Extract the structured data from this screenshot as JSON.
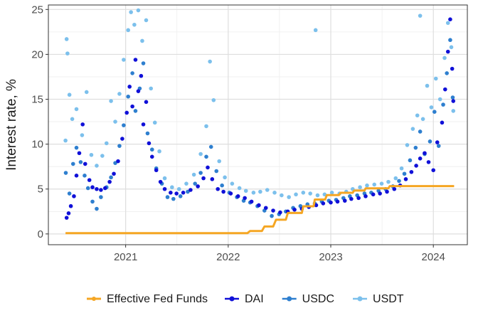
{
  "chart_data": {
    "type": "scatter",
    "title": "",
    "xlabel": "",
    "ylabel": "Interest rate, %",
    "xlim": [
      "2020-04-01",
      "2024-05-01"
    ],
    "ylim": [
      -1.2,
      25.5
    ],
    "x_ticks": [
      {
        "date": "2021-01-01",
        "label": "2021"
      },
      {
        "date": "2022-01-01",
        "label": "2022"
      },
      {
        "date": "2023-01-01",
        "label": "2023"
      },
      {
        "date": "2024-01-01",
        "label": "2024"
      }
    ],
    "y_ticks": [
      {
        "value": 0,
        "label": "0"
      },
      {
        "value": 5,
        "label": "5"
      },
      {
        "value": 10,
        "label": "10"
      },
      {
        "value": 15,
        "label": "15"
      },
      {
        "value": 20,
        "label": "20"
      },
      {
        "value": 25,
        "label": "25"
      }
    ],
    "grid": true,
    "legend_position": "bottom",
    "series": [
      {
        "name": "Effective Fed Funds",
        "kind": "line",
        "color": "#f5a623",
        "points": [
          [
            "2020-06-01",
            0.08
          ],
          [
            "2022-03-10",
            0.08
          ],
          [
            "2022-03-20",
            0.33
          ],
          [
            "2022-05-01",
            0.33
          ],
          [
            "2022-05-10",
            0.83
          ],
          [
            "2022-06-10",
            0.83
          ],
          [
            "2022-06-20",
            1.58
          ],
          [
            "2022-07-25",
            1.58
          ],
          [
            "2022-08-01",
            2.33
          ],
          [
            "2022-09-20",
            2.33
          ],
          [
            "2022-09-25",
            3.08
          ],
          [
            "2022-11-01",
            3.08
          ],
          [
            "2022-11-05",
            3.83
          ],
          [
            "2022-12-12",
            3.83
          ],
          [
            "2022-12-18",
            4.33
          ],
          [
            "2023-01-30",
            4.33
          ],
          [
            "2023-02-05",
            4.58
          ],
          [
            "2023-03-20",
            4.58
          ],
          [
            "2023-03-25",
            4.83
          ],
          [
            "2023-05-01",
            4.83
          ],
          [
            "2023-05-05",
            5.08
          ],
          [
            "2023-07-25",
            5.08
          ],
          [
            "2023-07-30",
            5.33
          ],
          [
            "2024-03-15",
            5.33
          ]
        ]
      },
      {
        "name": "DAI",
        "kind": "points",
        "color": "#1010d8",
        "points": [
          [
            "2020-06-05",
            1.8
          ],
          [
            "2020-06-12",
            2.3
          ],
          [
            "2020-06-20",
            3.1
          ],
          [
            "2020-07-01",
            4.2
          ],
          [
            "2020-07-10",
            6.5
          ],
          [
            "2020-07-20",
            9.0
          ],
          [
            "2020-08-01",
            12.2
          ],
          [
            "2020-08-10",
            7.8
          ],
          [
            "2020-08-25",
            6.0
          ],
          [
            "2020-09-05",
            5.2
          ],
          [
            "2020-09-20",
            5.0
          ],
          [
            "2020-10-05",
            4.9
          ],
          [
            "2020-10-20",
            5.1
          ],
          [
            "2020-11-05",
            5.8
          ],
          [
            "2020-11-20",
            6.7
          ],
          [
            "2020-12-05",
            8.1
          ],
          [
            "2020-12-20",
            10.6
          ],
          [
            "2021-01-05",
            13.5
          ],
          [
            "2021-01-15",
            16.4
          ],
          [
            "2021-01-25",
            14.2
          ],
          [
            "2021-02-05",
            19.4
          ],
          [
            "2021-02-15",
            15.9
          ],
          [
            "2021-02-25",
            17.6
          ],
          [
            "2021-03-05",
            12.2
          ],
          [
            "2021-03-15",
            14.7
          ],
          [
            "2021-03-25",
            10.1
          ],
          [
            "2021-04-05",
            8.6
          ],
          [
            "2021-04-20",
            7.1
          ],
          [
            "2021-05-05",
            5.8
          ],
          [
            "2021-05-20",
            5.0
          ],
          [
            "2021-06-10",
            4.6
          ],
          [
            "2021-07-01",
            4.5
          ],
          [
            "2021-07-25",
            4.6
          ],
          [
            "2021-08-20",
            4.9
          ],
          [
            "2021-09-15",
            5.3
          ],
          [
            "2021-10-05",
            6.2
          ],
          [
            "2021-10-20",
            7.4
          ],
          [
            "2021-11-05",
            6.1
          ],
          [
            "2021-11-25",
            5.0
          ],
          [
            "2021-12-15",
            4.7
          ],
          [
            "2022-01-10",
            4.5
          ],
          [
            "2022-02-05",
            4.2
          ],
          [
            "2022-03-01",
            4.0
          ],
          [
            "2022-03-25",
            3.6
          ],
          [
            "2022-04-20",
            3.2
          ],
          [
            "2022-05-15",
            2.9
          ],
          [
            "2022-06-10",
            2.6
          ],
          [
            "2022-07-05",
            2.4
          ],
          [
            "2022-08-01",
            2.5
          ],
          [
            "2022-08-25",
            2.7
          ],
          [
            "2022-09-20",
            2.8
          ],
          [
            "2022-10-15",
            3.0
          ],
          [
            "2022-11-10",
            3.2
          ],
          [
            "2022-12-05",
            3.4
          ],
          [
            "2023-01-01",
            3.5
          ],
          [
            "2023-01-25",
            3.6
          ],
          [
            "2023-02-20",
            3.7
          ],
          [
            "2023-03-15",
            3.9
          ],
          [
            "2023-04-10",
            4.0
          ],
          [
            "2023-05-05",
            4.2
          ],
          [
            "2023-06-01",
            4.4
          ],
          [
            "2023-06-25",
            4.5
          ],
          [
            "2023-07-20",
            4.7
          ],
          [
            "2023-08-15",
            5.0
          ],
          [
            "2023-09-05",
            5.4
          ],
          [
            "2023-09-25",
            6.1
          ],
          [
            "2023-10-15",
            6.9
          ],
          [
            "2023-11-01",
            7.6
          ],
          [
            "2023-11-15",
            8.4
          ],
          [
            "2023-12-01",
            9.0
          ],
          [
            "2023-12-15",
            8.0
          ],
          [
            "2024-01-01",
            7.1
          ],
          [
            "2024-01-15",
            10.2
          ],
          [
            "2024-02-01",
            12.4
          ],
          [
            "2024-02-12",
            16.1
          ],
          [
            "2024-02-22",
            20.3
          ],
          [
            "2024-03-01",
            23.9
          ],
          [
            "2024-03-08",
            18.4
          ],
          [
            "2024-03-12",
            14.8
          ]
        ]
      },
      {
        "name": "USDC",
        "kind": "points",
        "color": "#2e7fcf",
        "points": [
          [
            "2020-06-02",
            6.8
          ],
          [
            "2020-06-15",
            4.5
          ],
          [
            "2020-06-28",
            7.8
          ],
          [
            "2020-07-10",
            9.6
          ],
          [
            "2020-07-25",
            8.0
          ],
          [
            "2020-08-08",
            6.5
          ],
          [
            "2020-08-20",
            5.1
          ],
          [
            "2020-09-05",
            3.6
          ],
          [
            "2020-09-20",
            2.8
          ],
          [
            "2020-10-05",
            4.1
          ],
          [
            "2020-10-25",
            5.2
          ],
          [
            "2020-11-10",
            6.3
          ],
          [
            "2020-11-25",
            7.9
          ],
          [
            "2020-12-10",
            9.8
          ],
          [
            "2020-12-25",
            12.1
          ],
          [
            "2021-01-10",
            15.3
          ],
          [
            "2021-01-25",
            17.9
          ],
          [
            "2021-02-05",
            13.7
          ],
          [
            "2021-02-20",
            16.2
          ],
          [
            "2021-03-05",
            19.0
          ],
          [
            "2021-03-20",
            11.2
          ],
          [
            "2021-04-05",
            9.4
          ],
          [
            "2021-04-20",
            7.3
          ],
          [
            "2021-05-10",
            5.6
          ],
          [
            "2021-05-30",
            4.1
          ],
          [
            "2021-06-20",
            3.9
          ],
          [
            "2021-07-15",
            4.2
          ],
          [
            "2021-08-10",
            4.7
          ],
          [
            "2021-09-05",
            5.6
          ],
          [
            "2021-09-25",
            6.8
          ],
          [
            "2021-10-15",
            8.6
          ],
          [
            "2021-11-01",
            9.7
          ],
          [
            "2021-11-20",
            7.0
          ],
          [
            "2021-12-10",
            5.4
          ],
          [
            "2022-01-05",
            4.6
          ],
          [
            "2022-02-01",
            4.1
          ],
          [
            "2022-02-25",
            3.7
          ],
          [
            "2022-03-20",
            3.5
          ],
          [
            "2022-04-15",
            3.1
          ],
          [
            "2022-05-10",
            2.6
          ],
          [
            "2022-06-05",
            2.0
          ],
          [
            "2022-07-01",
            2.2
          ],
          [
            "2022-07-25",
            2.5
          ],
          [
            "2022-08-20",
            2.9
          ],
          [
            "2022-09-15",
            3.1
          ],
          [
            "2022-10-10",
            3.3
          ],
          [
            "2022-11-05",
            3.4
          ],
          [
            "2022-11-30",
            3.6
          ],
          [
            "2022-12-25",
            3.7
          ],
          [
            "2023-01-20",
            3.8
          ],
          [
            "2023-02-15",
            4.0
          ],
          [
            "2023-03-10",
            4.2
          ],
          [
            "2023-04-05",
            4.3
          ],
          [
            "2023-05-01",
            4.5
          ],
          [
            "2023-05-25",
            4.6
          ],
          [
            "2023-06-20",
            4.8
          ],
          [
            "2023-07-15",
            5.0
          ],
          [
            "2023-08-10",
            5.3
          ],
          [
            "2023-09-01",
            5.9
          ],
          [
            "2023-09-20",
            6.7
          ],
          [
            "2023-10-10",
            8.2
          ],
          [
            "2023-10-30",
            9.6
          ],
          [
            "2023-11-15",
            11.4
          ],
          [
            "2023-12-01",
            8.9
          ],
          [
            "2023-12-20",
            10.3
          ],
          [
            "2024-01-05",
            13.6
          ],
          [
            "2024-01-20",
            9.8
          ],
          [
            "2024-02-05",
            14.4
          ],
          [
            "2024-02-18",
            17.9
          ],
          [
            "2024-03-01",
            21.6
          ],
          [
            "2024-03-10",
            15.2
          ]
        ]
      },
      {
        "name": "USDT",
        "kind": "points",
        "color": "#7cc0ec",
        "points": [
          [
            "2020-06-01",
            10.4
          ],
          [
            "2020-06-05",
            21.7
          ],
          [
            "2020-06-08",
            20.1
          ],
          [
            "2020-06-15",
            15.5
          ],
          [
            "2020-06-25",
            12.8
          ],
          [
            "2020-07-10",
            13.9
          ],
          [
            "2020-07-30",
            11.0
          ],
          [
            "2020-08-15",
            15.8
          ],
          [
            "2020-09-01",
            8.8
          ],
          [
            "2020-09-20",
            7.6
          ],
          [
            "2020-10-10",
            8.7
          ],
          [
            "2020-10-25",
            10.1
          ],
          [
            "2020-11-10",
            14.8
          ],
          [
            "2020-11-25",
            12.5
          ],
          [
            "2020-12-10",
            15.6
          ],
          [
            "2020-12-25",
            19.4
          ],
          [
            "2021-01-10",
            22.7
          ],
          [
            "2021-01-20",
            24.7
          ],
          [
            "2021-02-01",
            23.3
          ],
          [
            "2021-02-15",
            24.9
          ],
          [
            "2021-03-01",
            21.5
          ],
          [
            "2021-03-15",
            23.8
          ],
          [
            "2021-04-01",
            16.2
          ],
          [
            "2021-04-15",
            12.4
          ],
          [
            "2021-05-01",
            9.2
          ],
          [
            "2021-05-20",
            6.2
          ],
          [
            "2021-06-15",
            5.2
          ],
          [
            "2021-07-10",
            5.0
          ],
          [
            "2021-08-05",
            5.6
          ],
          [
            "2021-09-01",
            6.6
          ],
          [
            "2021-09-25",
            8.9
          ],
          [
            "2021-10-15",
            12.0
          ],
          [
            "2021-10-28",
            19.2
          ],
          [
            "2021-11-10",
            14.9
          ],
          [
            "2021-11-30",
            8.1
          ],
          [
            "2021-12-20",
            6.3
          ],
          [
            "2022-01-15",
            5.6
          ],
          [
            "2022-02-10",
            5.1
          ],
          [
            "2022-03-05",
            4.8
          ],
          [
            "2022-04-01",
            4.6
          ],
          [
            "2022-04-25",
            4.7
          ],
          [
            "2022-05-20",
            4.9
          ],
          [
            "2022-06-15",
            4.6
          ],
          [
            "2022-07-10",
            4.3
          ],
          [
            "2022-08-05",
            4.1
          ],
          [
            "2022-08-30",
            4.4
          ],
          [
            "2022-09-25",
            4.6
          ],
          [
            "2022-10-20",
            4.5
          ],
          [
            "2022-11-08",
            22.7
          ],
          [
            "2022-11-15",
            4.3
          ],
          [
            "2022-12-10",
            4.4
          ],
          [
            "2023-01-05",
            4.6
          ],
          [
            "2023-02-01",
            4.5
          ],
          [
            "2023-02-25",
            4.7
          ],
          [
            "2023-03-20",
            5.0
          ],
          [
            "2023-04-15",
            5.2
          ],
          [
            "2023-05-10",
            5.4
          ],
          [
            "2023-06-05",
            5.5
          ],
          [
            "2023-07-01",
            5.6
          ],
          [
            "2023-07-25",
            5.8
          ],
          [
            "2023-08-20",
            6.2
          ],
          [
            "2023-09-10",
            7.3
          ],
          [
            "2023-09-30",
            9.9
          ],
          [
            "2023-10-20",
            11.7
          ],
          [
            "2023-11-05",
            13.2
          ],
          [
            "2023-11-15",
            24.3
          ],
          [
            "2023-11-25",
            12.8
          ],
          [
            "2023-12-10",
            16.5
          ],
          [
            "2023-12-25",
            14.1
          ],
          [
            "2024-01-10",
            17.3
          ],
          [
            "2024-01-25",
            15.0
          ],
          [
            "2024-02-10",
            19.6
          ],
          [
            "2024-02-22",
            23.5
          ],
          [
            "2024-03-05",
            20.8
          ],
          [
            "2024-03-12",
            13.7
          ]
        ]
      }
    ]
  }
}
